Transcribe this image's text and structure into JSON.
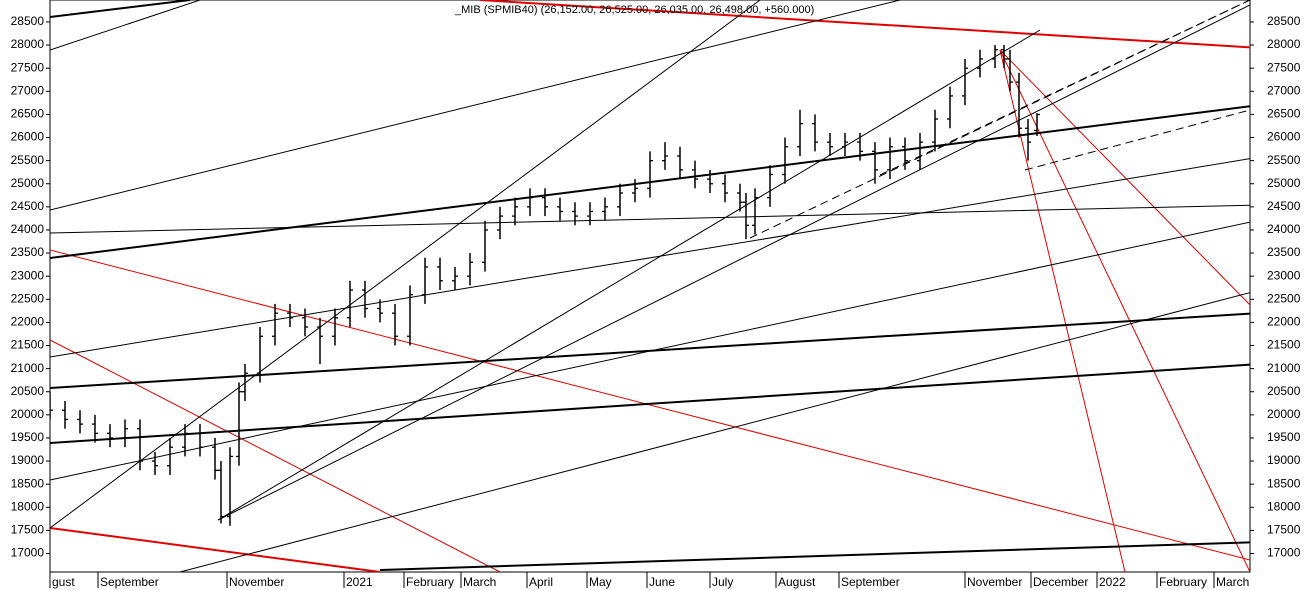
{
  "chart_data": {
    "type": "ohlc",
    "title": "_MIB (SPMIB40) (26,152.00, 26,525.00, 26,035.00, 26,498.00, +560.000)",
    "x": [
      0,
      5,
      10,
      15,
      20,
      25,
      30,
      35,
      40,
      45,
      50,
      55,
      57,
      60,
      63,
      65,
      70,
      75,
      80,
      85,
      90,
      95,
      100,
      105,
      110,
      115,
      120,
      125,
      130,
      135,
      140,
      145,
      150,
      155,
      160,
      165,
      170,
      175,
      180,
      185,
      190,
      195,
      200,
      205,
      210,
      215,
      220,
      225,
      230,
      232,
      235,
      240,
      245,
      250,
      255,
      260,
      265,
      270,
      275,
      280,
      285,
      290,
      295,
      300,
      305,
      310,
      315,
      318,
      320,
      323,
      326,
      329
    ],
    "open": [
      20300,
      20100,
      19900,
      19800,
      19600,
      19500,
      19700,
      19000,
      18900,
      19300,
      19600,
      19300,
      18800,
      17800,
      19100,
      20500,
      20900,
      21700,
      22200,
      22100,
      21900,
      21700,
      22100,
      22700,
      22300,
      22200,
      21700,
      22600,
      23200,
      22900,
      23000,
      23300,
      24000,
      24300,
      24500,
      24700,
      24500,
      24400,
      24300,
      24400,
      24500,
      24800,
      24900,
      25500,
      25600,
      25300,
      25100,
      25000,
      24800,
      24600,
      24100,
      24700,
      25200,
      25800,
      26300,
      25900,
      25800,
      25900,
      25700,
      25300,
      25800,
      25500,
      25900,
      26400,
      26900,
      27500,
      27700,
      27900,
      27700,
      27200,
      26200,
      26152
    ],
    "high": [
      20500,
      20300,
      20100,
      20000,
      19800,
      19900,
      19900,
      19200,
      19500,
      19800,
      19800,
      19500,
      19000,
      19300,
      20700,
      21100,
      21900,
      22400,
      22400,
      22300,
      22100,
      22300,
      22900,
      22900,
      22500,
      22400,
      22800,
      23400,
      23400,
      23200,
      23500,
      24200,
      24500,
      24700,
      24900,
      24900,
      24700,
      24600,
      24600,
      24700,
      25000,
      25100,
      25700,
      25900,
      25800,
      25500,
      25300,
      25200,
      25000,
      24800,
      24900,
      25400,
      26000,
      26600,
      26500,
      26100,
      26100,
      26100,
      25900,
      26000,
      26000,
      26100,
      26600,
      27100,
      27700,
      27900,
      28000,
      28000,
      27900,
      27400,
      26400,
      26525
    ],
    "low": [
      19900,
      19700,
      19600,
      19400,
      19300,
      19300,
      18800,
      18700,
      18700,
      19100,
      19100,
      18600,
      17650,
      17600,
      18900,
      20300,
      20700,
      21500,
      21900,
      21700,
      21100,
      21500,
      21900,
      22100,
      22000,
      21500,
      21500,
      22400,
      22700,
      22700,
      22800,
      23100,
      23800,
      24100,
      24300,
      24300,
      24200,
      24100,
      24100,
      24200,
      24300,
      24600,
      24700,
      25300,
      25100,
      24900,
      24800,
      24600,
      24400,
      23800,
      23900,
      24500,
      25000,
      25600,
      25700,
      25600,
      25600,
      25500,
      25000,
      25100,
      25300,
      25300,
      25700,
      26200,
      26700,
      27300,
      27500,
      27500,
      27000,
      26000,
      25500,
      26035
    ],
    "close": [
      20100,
      19900,
      19800,
      19600,
      19500,
      19700,
      19000,
      18900,
      19300,
      19600,
      19300,
      18800,
      17800,
      19100,
      20500,
      20900,
      21700,
      22200,
      22100,
      21900,
      21700,
      22100,
      22700,
      22300,
      22200,
      21700,
      22600,
      23200,
      22900,
      23000,
      23300,
      24000,
      24300,
      24500,
      24700,
      24500,
      24400,
      24300,
      24400,
      24500,
      24800,
      24900,
      25500,
      25600,
      25300,
      25100,
      25000,
      24800,
      24600,
      24100,
      24700,
      25200,
      25800,
      26300,
      25900,
      25800,
      25900,
      25700,
      25300,
      25800,
      25500,
      25900,
      26400,
      26900,
      27500,
      27700,
      27900,
      27700,
      27200,
      26200,
      25900,
      26498
    ],
    "color": "#000000",
    "xlim": [
      0,
      400
    ],
    "xticks": [
      {
        "value": 0,
        "label": "gust"
      },
      {
        "value": 16,
        "label": "September"
      },
      {
        "value": 59,
        "label": "November"
      },
      {
        "value": 98,
        "label": "2021"
      },
      {
        "value": 118,
        "label": "February"
      },
      {
        "value": 137,
        "label": "March"
      },
      {
        "value": 159,
        "label": "April"
      },
      {
        "value": 179,
        "label": "May"
      },
      {
        "value": 199,
        "label": "June"
      },
      {
        "value": 220,
        "label": "July"
      },
      {
        "value": 242,
        "label": "August"
      },
      {
        "value": 263,
        "label": "September"
      },
      {
        "value": 305,
        "label": "November"
      },
      {
        "value": 327,
        "label": "December"
      },
      {
        "value": 349,
        "label": "2022"
      },
      {
        "value": 369,
        "label": "February"
      },
      {
        "value": 388,
        "label": "March"
      }
    ],
    "ylim": [
      16600,
      28975
    ],
    "yticks": [
      17000,
      17500,
      18000,
      18500,
      19000,
      19500,
      20000,
      20500,
      21000,
      21500,
      22000,
      22500,
      23000,
      23500,
      24000,
      24500,
      25000,
      25500,
      26000,
      26500,
      27000,
      27500,
      28000,
      28500
    ]
  }
}
